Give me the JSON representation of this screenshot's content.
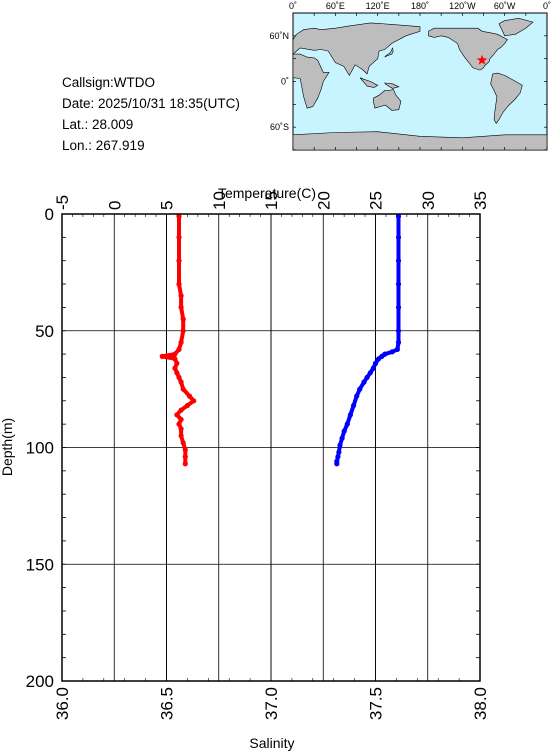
{
  "info": {
    "callsign": "Callsign:WTDO",
    "date": "Date:  2025/10/31 18:35(UTC)",
    "lat": "Lat.:   28.009",
    "lon": "Lon.:  267.919"
  },
  "map": {
    "top_labels": [
      "0˚",
      "60˚E",
      "120˚E",
      "180˚",
      "120˚W",
      "60˚W",
      "0˚"
    ],
    "left_labels": [
      "60˚N",
      "0˚",
      "60˚S"
    ],
    "ocean_color": "#c8f4ff",
    "land_color": "#bdbdbd",
    "marker_color": "#ff0000",
    "marker_icon": "star-icon",
    "marker_lat": 28.009,
    "marker_lon": 267.919
  },
  "chart_data": {
    "type": "line",
    "top_axis_label": "Temperature(C)",
    "left_axis_label": "Depth(m)",
    "bottom_axis_label": "Salinity",
    "temp_range": [
      -5,
      35
    ],
    "salinity_range": [
      36.0,
      38.0
    ],
    "depth_range": [
      0,
      200
    ],
    "temp_ticks": [
      "-5",
      "0",
      "5",
      "10",
      "15",
      "20",
      "25",
      "30",
      "35"
    ],
    "salinity_ticks": [
      "36.0",
      "36.5",
      "37.0",
      "37.5",
      "38.0"
    ],
    "depth_ticks": [
      "0",
      "50",
      "100",
      "150",
      "200"
    ],
    "grid": true,
    "series": [
      {
        "quantity": "temperature",
        "color": "#0000ff",
        "depth": [
          1,
          10,
          20,
          30,
          40,
          50,
          55,
          58,
          59,
          60,
          61,
          62,
          64,
          66,
          68,
          70,
          72,
          75,
          78,
          82,
          86,
          90,
          93,
          96,
          99,
          102,
          104,
          106,
          107
        ],
        "values": [
          27.2,
          27.2,
          27.2,
          27.2,
          27.2,
          27.2,
          27.2,
          27.1,
          26.6,
          25.9,
          25.6,
          25.3,
          25.0,
          24.8,
          24.5,
          24.2,
          23.9,
          23.5,
          23.2,
          22.9,
          22.6,
          22.3,
          22.0,
          21.8,
          21.6,
          21.5,
          21.4,
          21.3,
          21.3
        ]
      },
      {
        "quantity": "salinity",
        "color": "#ff0000",
        "depth": [
          1,
          10,
          20,
          30,
          35,
          40,
          45,
          50,
          55,
          58,
          60,
          61,
          62,
          64,
          66,
          68,
          70,
          72,
          75,
          78,
          80,
          82,
          84,
          86,
          88,
          90,
          92,
          95,
          98,
          101,
          104,
          107
        ],
        "values": [
          36.56,
          36.56,
          36.56,
          36.56,
          36.57,
          36.57,
          36.58,
          36.58,
          36.57,
          36.56,
          36.54,
          36.48,
          36.54,
          36.55,
          36.54,
          36.55,
          36.56,
          36.57,
          36.58,
          36.61,
          36.63,
          36.6,
          36.57,
          36.55,
          36.57,
          36.56,
          36.57,
          36.57,
          36.58,
          36.59,
          36.59,
          36.59
        ]
      }
    ]
  }
}
